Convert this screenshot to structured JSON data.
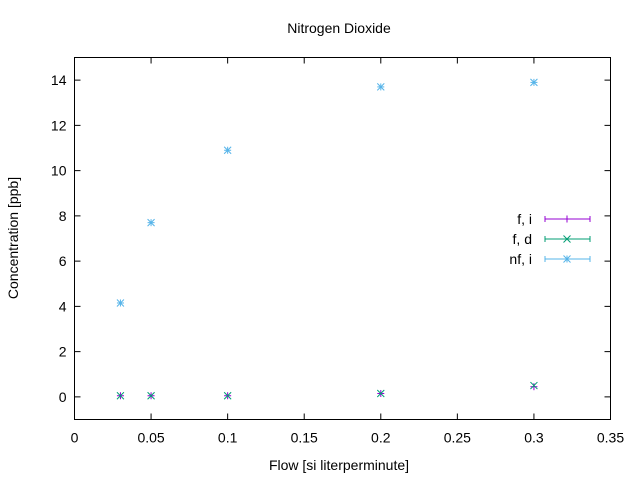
{
  "chart_data": {
    "type": "scatter",
    "title": "Nitrogen Dioxide",
    "xlabel": "Flow [si literperminute]",
    "ylabel": "Concentration [ppb]",
    "xlim": [
      0,
      0.35
    ],
    "ylim": [
      -1,
      15
    ],
    "xticks": [
      0,
      0.05,
      0.1,
      0.15,
      0.2,
      0.25,
      0.3,
      0.35
    ],
    "xtick_labels": [
      "0",
      "0.05",
      "0.1",
      "0.15",
      "0.2",
      "0.25",
      "0.3",
      "0.35"
    ],
    "yticks": [
      0,
      2,
      4,
      6,
      8,
      10,
      12,
      14
    ],
    "ytick_labels": [
      "0",
      "2",
      "4",
      "6",
      "8",
      "10",
      "12",
      "14"
    ],
    "grid": false,
    "legend_position": "right",
    "series": [
      {
        "name": "f,  i",
        "marker": "plus",
        "color": "#9400d3",
        "x": [
          0.03,
          0.05,
          0.1,
          0.2,
          0.3
        ],
        "y": [
          0.05,
          0.05,
          0.05,
          0.15,
          0.45
        ]
      },
      {
        "name": "f, d",
        "marker": "cross",
        "color": "#009e73",
        "x": [
          0.03,
          0.05,
          0.1,
          0.2,
          0.3
        ],
        "y": [
          0.05,
          0.05,
          0.05,
          0.15,
          0.5
        ]
      },
      {
        "name": "nf, i",
        "marker": "star",
        "color": "#56b4e9",
        "x": [
          0.03,
          0.05,
          0.1,
          0.2,
          0.3
        ],
        "y": [
          4.15,
          7.7,
          10.9,
          13.7,
          13.9
        ]
      }
    ]
  }
}
